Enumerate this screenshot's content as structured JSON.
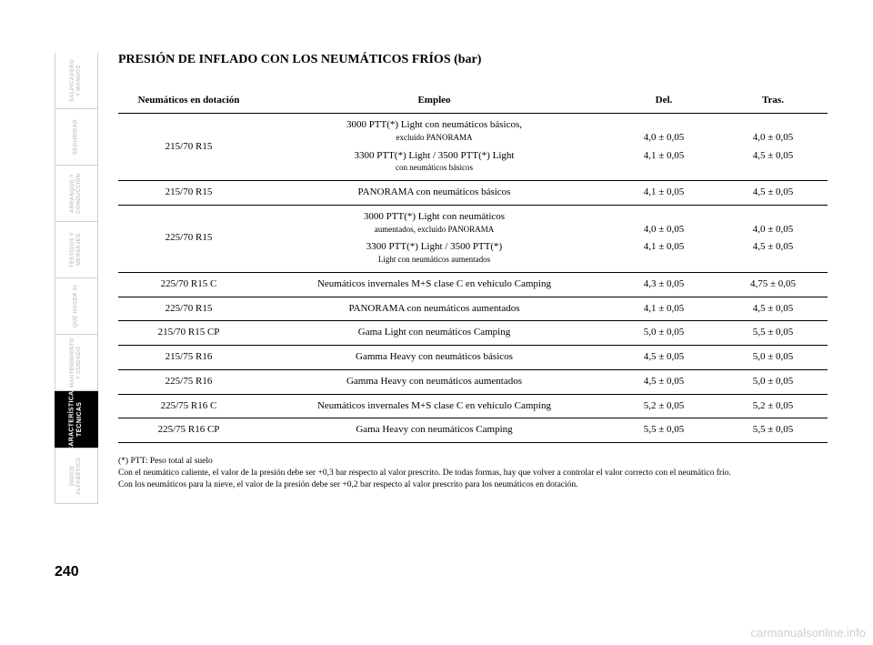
{
  "page_number": "240",
  "watermark": "carmanualsonline.info",
  "title": "PRESIÓN DE INFLADO CON LOS NEUMÁTICOS FRÍOS (bar)",
  "tabs": [
    {
      "label": "SALPICADERO\nY MANDOS"
    },
    {
      "label": "SEGURIDAD"
    },
    {
      "label": "ARRANQUE\nY CONDUCCIÓN"
    },
    {
      "label": "TESTIGOS\nY MENSAJES"
    },
    {
      "label": "QUÉ HACER SI"
    },
    {
      "label": "MANTENIMIENTO\nY CUIDADO"
    },
    {
      "label": "CARACTERÍSTICAS\nTÉCNICAS",
      "active": true
    },
    {
      "label": "ÍNDICE\nALFABÉTICO"
    }
  ],
  "table": {
    "columns": [
      "Neumáticos en dotación",
      "Empleo",
      "Del.",
      "Tras."
    ],
    "rows": [
      {
        "tyre": "215/70 R15",
        "lines": [
          {
            "desc": "3000 PTT(*) Light con neumáticos básicos,\nexcluido PANORAMA",
            "front": "4,0 ± 0,05",
            "rear": "4,0 ± 0,05"
          },
          {
            "desc": "3300 PTT(*) Light / 3500 PTT(*) Light\ncon neumáticos básicos",
            "front": "4,1 ± 0,05",
            "rear": "4,5 ± 0,05"
          }
        ]
      },
      {
        "tyre": "215/70 R15",
        "lines": [
          {
            "desc": "PANORAMA con neumáticos básicos",
            "front": "4,1 ± 0,05",
            "rear": "4,5 ± 0,05"
          }
        ]
      },
      {
        "tyre": "225/70 R15",
        "lines": [
          {
            "desc": "3000 PTT(*) Light con neumáticos\naumentados, excluido PANORAMA",
            "front": "4,0 ± 0,05",
            "rear": "4,0 ± 0,05"
          },
          {
            "desc": "3300 PTT(*) Light / 3500 PTT(*)\nLight con neumáticos aumentados",
            "front": "4,1 ± 0,05",
            "rear": "4,5 ± 0,05"
          }
        ]
      },
      {
        "tyre": "225/70 R15 C",
        "lines": [
          {
            "desc": "Neumáticos invernales M+S clase C en vehículo Camping",
            "front": "4,3 ± 0,05",
            "rear": "4,75 ± 0,05"
          }
        ]
      },
      {
        "tyre": "225/70 R15",
        "lines": [
          {
            "desc": "PANORAMA con neumáticos aumentados",
            "front": "4,1 ± 0,05",
            "rear": "4,5 ± 0,05"
          }
        ]
      },
      {
        "tyre": "215/70 R15 CP",
        "lines": [
          {
            "desc": "Gama Light con neumáticos Camping",
            "front": "5,0 ± 0,05",
            "rear": "5,5 ± 0,05"
          }
        ]
      },
      {
        "tyre": "215/75 R16",
        "lines": [
          {
            "desc": "Gamma Heavy con neumáticos básicos",
            "front": "4,5 ± 0,05",
            "rear": "5,0 ± 0,05"
          }
        ]
      },
      {
        "tyre": "225/75 R16",
        "lines": [
          {
            "desc": "Gamma Heavy con neumáticos aumentados",
            "front": "4,5 ± 0,05",
            "rear": "5,0 ± 0,05"
          }
        ]
      },
      {
        "tyre": "225/75 R16 C",
        "lines": [
          {
            "desc": "Neumáticos invernales M+S clase C en vehículo Camping",
            "front": "5,2 ± 0,05",
            "rear": "5,2 ± 0,05"
          }
        ]
      },
      {
        "tyre": "225/75 R16 CP",
        "lines": [
          {
            "desc": "Gama Heavy con neumáticos Camping",
            "front": "5,5 ± 0,05",
            "rear": "5,5 ± 0,05"
          }
        ]
      }
    ]
  },
  "footnotes": [
    "(*) PTT: Peso total al suelo",
    "Con el neumático caliente, el valor de la presión debe ser +0,3 bar respecto al valor prescrito. De todas formas, hay que volver a controlar el valor correcto con el neumático frío.",
    "Con los neumáticos para la nieve, el valor de la presión debe ser +0,2 bar respecto al valor prescrito para los neumáticos en dotación."
  ],
  "colors": {
    "text": "#000000",
    "background": "#ffffff",
    "tab_inactive_text": "#c8c8c8",
    "tab_border": "#d0d0d0",
    "tab_active_bg": "#000000",
    "tab_active_text": "#ffffff",
    "watermark": "#cfcfcf"
  }
}
